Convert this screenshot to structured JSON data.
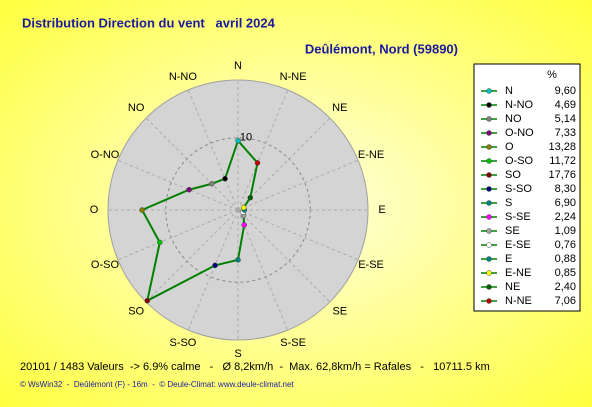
{
  "chart_data": {
    "type": "radar",
    "title": "Distribution Direction du vent   avril 2024",
    "subtitle": "Deûlémont, Nord (59890)",
    "legend_header": "%",
    "categories": [
      "N",
      "N-NO",
      "NO",
      "O-NO",
      "O",
      "O-SO",
      "SO",
      "S-SO",
      "S",
      "S-SE",
      "SE",
      "E-SE",
      "E",
      "E-NE",
      "NE",
      "N-NE"
    ],
    "values": [
      9.6,
      4.69,
      5.14,
      7.33,
      13.28,
      11.72,
      17.76,
      8.3,
      6.9,
      2.24,
      1.09,
      0.76,
      0.88,
      0.85,
      2.4,
      7.06
    ],
    "value_labels": [
      "9,60",
      "4,69",
      "5,14",
      "7,33",
      "13,28",
      "11,72",
      "17,76",
      "8,30",
      "6,90",
      "2,24",
      "1,09",
      "0,76",
      "0,88",
      "0,85",
      "2,40",
      "7,06"
    ],
    "marker_colors": [
      "#00c0c0",
      "#000000",
      "#808080",
      "#800080",
      "#808000",
      "#00c000",
      "#800000",
      "#000080",
      "#008080",
      "#ff00ff",
      "#a0a0a0",
      "#ffffff",
      "#008080",
      "#ffff00",
      "#006000",
      "#c00000"
    ],
    "color": "#008000",
    "rlim": [
      0,
      18
    ],
    "rticks": [
      10
    ],
    "footer": "20101 / 1483 Valeurs  -> 6.9% calme   -   Ø 8,2km/h  -  Max. 62,8km/h = Rafales   -   10711.5 km",
    "credit": "© WsWin32  -  Deûlémont (F) - 16m  -  © Deule-Climat: www.deule-climat.net"
  }
}
